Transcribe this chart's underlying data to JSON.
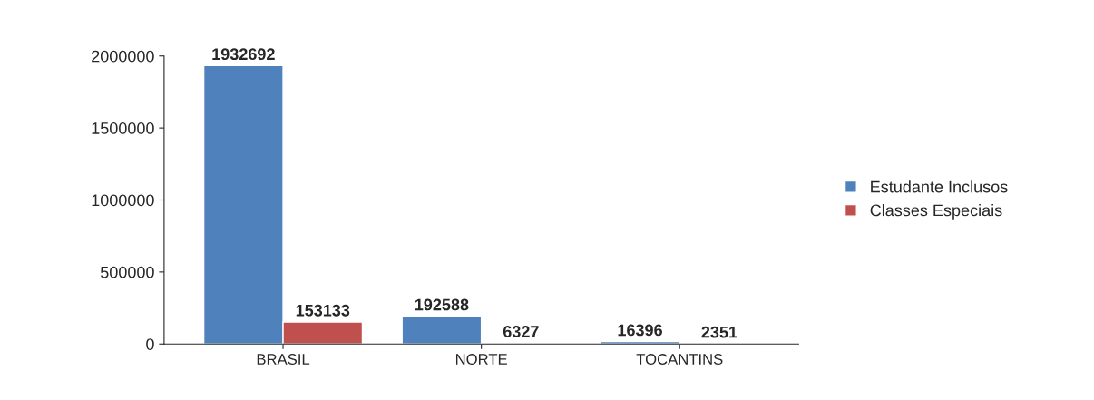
{
  "chart_data": {
    "type": "bar",
    "categories": [
      "BRASIL",
      "NORTE",
      "TOCANTINS"
    ],
    "series": [
      {
        "name": "Estudante Inclusos",
        "color": "#4f81bd",
        "values": [
          1932692,
          192588,
          16396
        ]
      },
      {
        "name": "Classes Especiais",
        "color": "#c0504d",
        "values": [
          153133,
          6327,
          2351
        ]
      }
    ],
    "ylim": [
      0,
      2000000
    ],
    "yticks": [
      0,
      500000,
      1000000,
      1500000,
      2000000
    ],
    "data_labels": true,
    "legend": "right",
    "grid": false
  }
}
